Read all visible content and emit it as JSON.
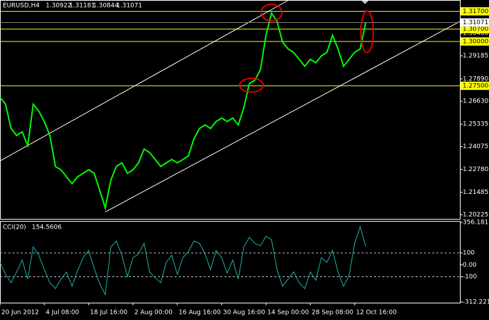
{
  "chart_data": [
    {
      "type": "line",
      "title": "EURUSD,H4",
      "open": 1.30922,
      "high": 1.31181,
      "low": 1.30844,
      "ylim": [
        1.1999,
        1.323
      ],
      "xlim": [
        0,
        83
      ],
      "yticks": [
        1.31071,
        {
          "value": 1.3046,
          "label": "1.30460"
        },
        1.29185,
        {
          "value": 1.2789,
          "label": "1.27890"
        },
        {
          "value": 1.2663,
          "label": "1.26630"
        },
        1.25335,
        1.24075,
        {
          "value": 1.2278,
          "label": "1.22780"
        },
        1.21485,
        1.20225
      ],
      "levels": [
        {
          "value": 1.317,
          "label": "1.31700"
        },
        {
          "value": 1.307,
          "label": "1.30700"
        },
        {
          "value": 1.3,
          "label": "1.30000"
        },
        {
          "value": 1.275,
          "label": "1.27500"
        }
      ],
      "level_color": "#ffff00",
      "xticks": [
        {
          "value": 0,
          "label": "20 Jun 2012"
        },
        {
          "value": 8,
          "label": "4 Jul 08:00"
        },
        {
          "value": 16,
          "label": "18 Jul 16:00"
        },
        {
          "value": 24,
          "label": "2 Aug 00:00"
        },
        {
          "value": 32,
          "label": "16 Aug 16:00"
        },
        {
          "value": 40,
          "label": "30 Aug 16:00"
        },
        {
          "value": 48,
          "label": "14 Sep 00:00"
        },
        {
          "value": 56,
          "label": "28 Sep 08:00"
        },
        {
          "value": 64,
          "label": "12 Oct 16:00"
        }
      ],
      "trendlines": [
        {
          "x": [
            0,
            51.9
          ],
          "y": [
            1.2326,
            1.323
          ]
        },
        {
          "x": [
            19,
            83
          ],
          "y": [
            1.2038,
            1.3113
          ]
        }
      ],
      "trend_color": "#ffffff",
      "series": [
        {
          "color": "#00ff00",
          "values": [
            1.2685,
            1.2646,
            1.2509,
            1.247,
            1.249,
            1.2412,
            1.2646,
            1.2607,
            1.2548,
            1.247,
            1.2295,
            1.2276,
            1.2237,
            1.2198,
            1.2237,
            1.2256,
            1.2276,
            1.2256,
            1.2159,
            1.2061,
            1.2217,
            1.2295,
            1.2315,
            1.2256,
            1.2276,
            1.2315,
            1.2393,
            1.2373,
            1.2334,
            1.2295,
            1.2315,
            1.2334,
            1.2315,
            1.2334,
            1.2354,
            1.2451,
            1.2509,
            1.2529,
            1.2509,
            1.2548,
            1.2568,
            1.2548,
            1.2568,
            1.2529,
            1.2626,
            1.2763,
            1.2782,
            1.2841,
            1.3035,
            1.316,
            1.3113,
            1.2996,
            1.2958,
            1.2938,
            1.2899,
            1.286,
            1.2899,
            1.288,
            1.2919,
            1.2938,
            1.3035,
            1.2958,
            1.286,
            1.2899,
            1.2938,
            1.2958,
            1.31071
          ]
        }
      ]
    },
    {
      "type": "line",
      "title": "CCI(20)",
      "ylim": [
        -312.221,
        356.181
      ],
      "yticks": [
        356.181,
        100,
        {
          "value": 0,
          "label": "0.00"
        },
        -100,
        -312.221
      ],
      "levels": [
        100,
        -100
      ],
      "series": [
        {
          "color": "#20b2aa",
          "values": [
            20,
            -80,
            -150,
            -60,
            40,
            -120,
            150,
            80,
            -40,
            -150,
            -200,
            -120,
            -60,
            -180,
            -50,
            60,
            120,
            -30,
            -160,
            -250,
            150,
            200,
            80,
            -100,
            60,
            90,
            180,
            -60,
            -110,
            -150,
            20,
            80,
            -80,
            60,
            110,
            200,
            180,
            90,
            -40,
            120,
            60,
            -70,
            40,
            -120,
            150,
            230,
            180,
            160,
            240,
            210,
            -40,
            -180,
            -120,
            -60,
            -150,
            -200,
            -60,
            -130,
            60,
            20,
            120,
            -60,
            -180,
            -90,
            180,
            320,
            154.5606
          ]
        }
      ]
    }
  ]
}
